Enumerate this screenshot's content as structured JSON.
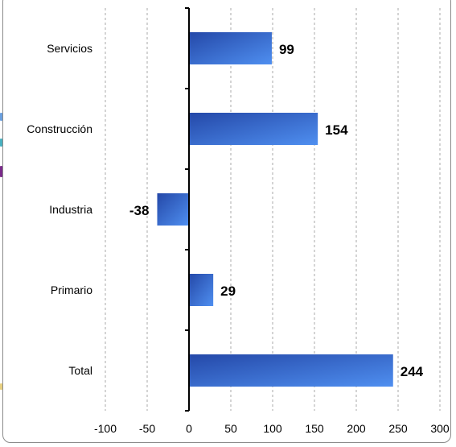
{
  "chart_data": {
    "type": "bar",
    "orientation": "horizontal",
    "categories": [
      "Servicios",
      "Construcción",
      "Industria",
      "Primario",
      "Total"
    ],
    "values": [
      99,
      154,
      -38,
      29,
      244
    ],
    "value_labels": [
      "99",
      "154",
      "-38",
      "29",
      "244"
    ],
    "title": "",
    "xlabel": "",
    "ylabel": "",
    "xlim": [
      -100,
      300
    ],
    "xticks": [
      "-100",
      "-50",
      "0",
      "50",
      "100",
      "150",
      "200",
      "250",
      "300"
    ],
    "grid": "vertical dashed",
    "legend": "none",
    "bar_colors": {
      "light": "#4f8ff0",
      "dark": "#2448a8"
    }
  }
}
